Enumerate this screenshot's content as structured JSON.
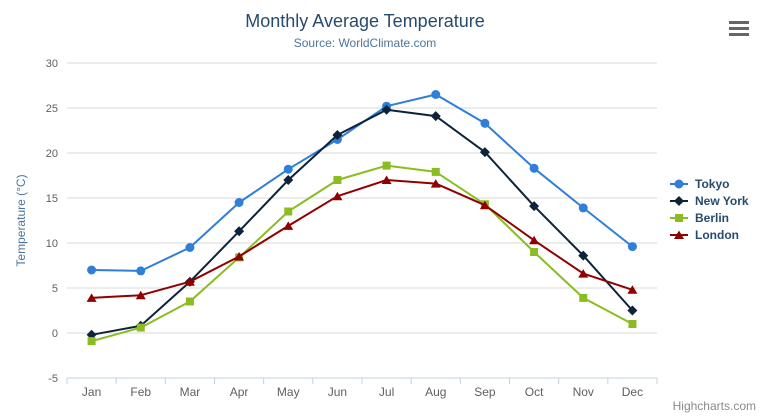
{
  "chart_data": {
    "type": "line",
    "title": "Monthly Average Temperature",
    "subtitle": "Source: WorldClimate.com",
    "xlabel": "",
    "ylabel": "Temperature (°C)",
    "categories": [
      "Jan",
      "Feb",
      "Mar",
      "Apr",
      "May",
      "Jun",
      "Jul",
      "Aug",
      "Sep",
      "Oct",
      "Nov",
      "Dec"
    ],
    "ylim": [
      -5,
      30
    ],
    "ytick_step": 5,
    "yticks": [
      -5,
      0,
      5,
      10,
      15,
      20,
      25,
      30
    ],
    "grid": "horizontal",
    "legend_position": "right",
    "series": [
      {
        "name": "Tokyo",
        "color": "#2f7ed8",
        "marker": "circle",
        "values": [
          7.0,
          6.9,
          9.5,
          14.5,
          18.2,
          21.5,
          25.2,
          26.5,
          23.3,
          18.3,
          13.9,
          9.6
        ]
      },
      {
        "name": "New York",
        "color": "#0d233a",
        "marker": "diamond",
        "values": [
          -0.2,
          0.8,
          5.7,
          11.3,
          17.0,
          22.0,
          24.8,
          24.1,
          20.1,
          14.1,
          8.6,
          2.5
        ]
      },
      {
        "name": "Berlin",
        "color": "#8bbc21",
        "marker": "square",
        "values": [
          -0.9,
          0.6,
          3.5,
          8.4,
          13.5,
          17.0,
          18.6,
          17.9,
          14.3,
          9.0,
          3.9,
          1.0
        ]
      },
      {
        "name": "London",
        "color": "#910000",
        "marker": "triangle",
        "values": [
          3.9,
          4.2,
          5.7,
          8.5,
          11.9,
          15.2,
          17.0,
          16.6,
          14.2,
          10.3,
          6.6,
          4.8
        ]
      }
    ],
    "colors": {
      "title": "#274b6d",
      "subtitle": "#4d759e",
      "axis_label": "#606060",
      "axis_title": "#4d759e",
      "axis_line": "#c0d0e0",
      "gridline": "#d8d8d8",
      "legend_text": "#274b6d",
      "menu_icon": "#666666",
      "credits": "#8a8a8a"
    }
  },
  "ui": {
    "credits": "Highcharts.com"
  }
}
